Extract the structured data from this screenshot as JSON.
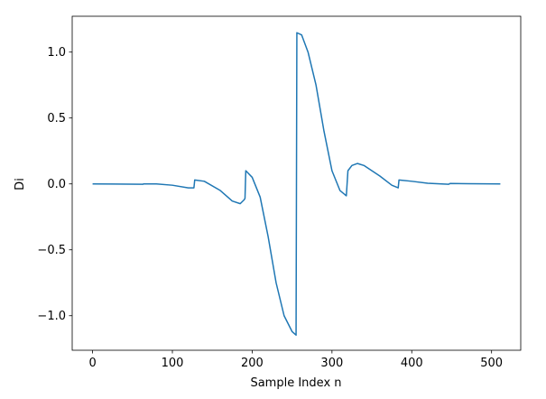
{
  "chart_data": {
    "type": "line",
    "x_label": "Sample Index n",
    "y_label": "Di",
    "x": [
      0,
      63,
      64,
      80,
      100,
      120,
      127,
      128,
      140,
      160,
      175,
      185,
      190,
      191,
      192,
      200,
      210,
      220,
      230,
      240,
      250,
      255,
      256,
      262,
      270,
      280,
      290,
      300,
      310,
      318,
      320,
      325,
      332,
      340,
      360,
      375,
      383,
      384,
      400,
      420,
      446,
      448,
      470,
      511
    ],
    "values": [
      0,
      -0.003,
      0.0,
      0.0,
      -0.01,
      -0.03,
      -0.03,
      0.03,
      0.02,
      -0.05,
      -0.13,
      -0.15,
      -0.12,
      -0.11,
      0.1,
      0.05,
      -0.1,
      -0.4,
      -0.75,
      -1.0,
      -1.12,
      -1.147,
      1.147,
      1.13,
      1.0,
      0.75,
      0.4,
      0.1,
      -0.05,
      -0.09,
      0.1,
      0.14,
      0.155,
      0.14,
      0.06,
      -0.01,
      -0.03,
      0.03,
      0.02,
      0.005,
      -0.003,
      0.003,
      0.002,
      0.0
    ],
    "color": "#1f77b4",
    "xlim": [
      -25.55,
      536.55
    ],
    "ylim": [
      -1.262,
      1.272
    ],
    "xticks": [
      0,
      100,
      200,
      300,
      400,
      500
    ],
    "yticks": [
      {
        "value": -1.0,
        "label": "−1.0"
      },
      {
        "value": -0.5,
        "label": "−0.5"
      },
      {
        "value": 0.0,
        "label": "0.0"
      },
      0.5,
      {
        "value": 1.0,
        "label": "1.0"
      }
    ]
  }
}
